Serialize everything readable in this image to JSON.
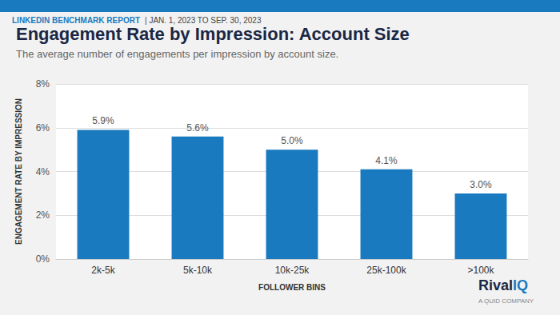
{
  "chart_data": {
    "type": "bar",
    "title": "Engagement Rate by Impression: Account Size",
    "subtitle": "The average number of engagements per impression by account size.",
    "xlabel": "FOLLOWER BINS",
    "ylabel": "ENGAGEMENT RATE BY IMPRESSION",
    "categories": [
      "2k-5k",
      "5k-10k",
      "10k-25k",
      "25k-100k",
      ">100k"
    ],
    "values": [
      0.059,
      0.056,
      0.05,
      0.041,
      0.03
    ],
    "value_labels": [
      "5.9%",
      "5.6%",
      "5.0%",
      "4.1%",
      "3.0%"
    ],
    "data_labels": true,
    "color": "#1a7abf",
    "ylim": [
      0,
      0.08
    ],
    "yticks": [
      {
        "value": 0,
        "label": "0%"
      },
      {
        "value": 0.02,
        "label": "2%"
      },
      {
        "value": 0.04,
        "label": "4%"
      },
      {
        "value": 0.06,
        "label": "6%"
      },
      {
        "value": 0.08,
        "label": "8%"
      }
    ],
    "grid": true,
    "annotations": [
      "LINKEDIN BENCHMARK REPORT",
      "| JAN. 1, 2023 TO SEP. 30, 2023",
      "Rival",
      "IQ",
      "A QUID COMPANY"
    ]
  }
}
